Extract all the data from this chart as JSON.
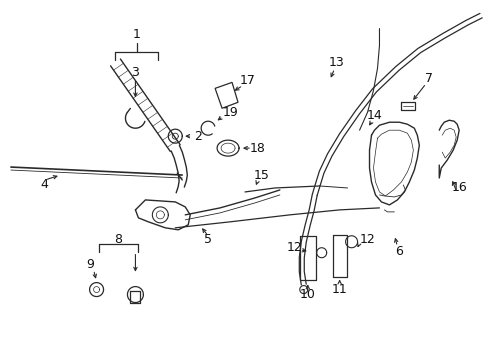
{
  "bg_color": "#ffffff",
  "lc": "#2a2a2a",
  "tc": "#111111",
  "figsize": [
    4.89,
    3.6
  ],
  "dpi": 100,
  "xlim": [
    0,
    489
  ],
  "ylim": [
    0,
    360
  ]
}
